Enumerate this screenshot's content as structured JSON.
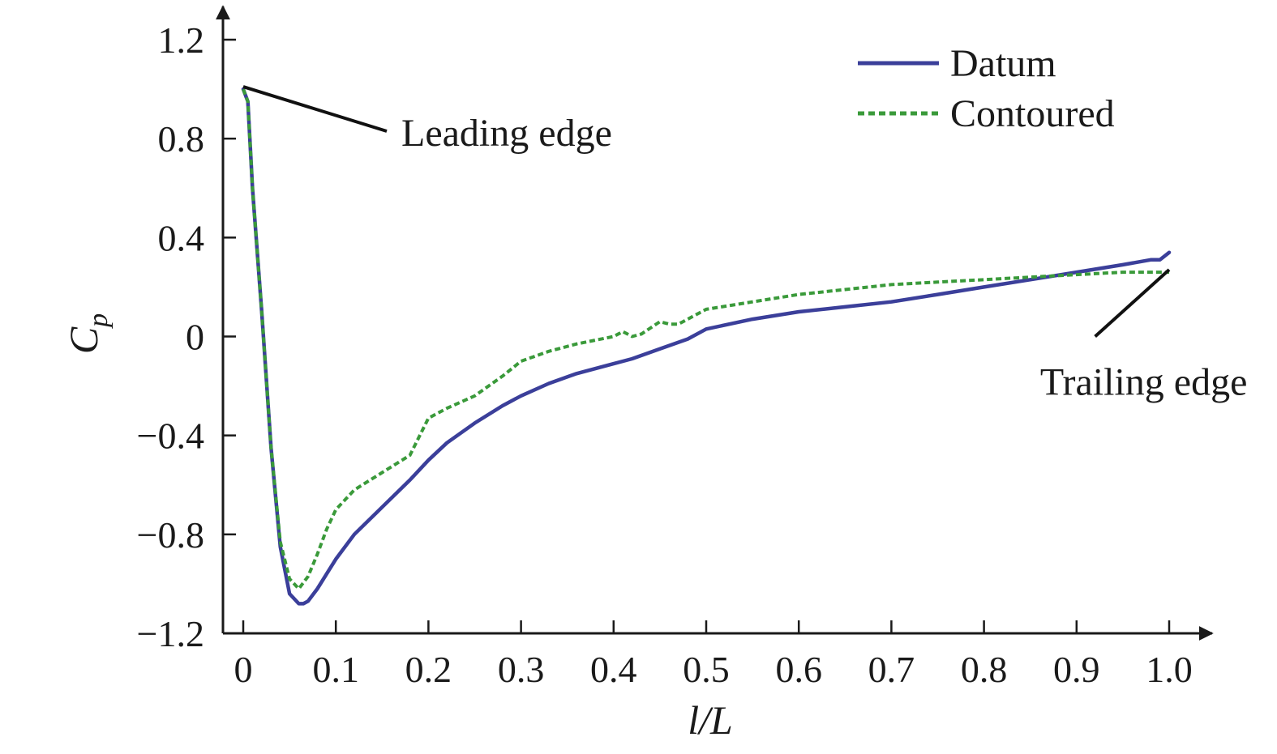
{
  "chart_data": {
    "type": "line",
    "xlabel": "l/L",
    "ylabel": "C",
    "ylabel_sub": "p",
    "xlim": [
      0,
      1.0
    ],
    "ylim": [
      -1.2,
      1.2
    ],
    "xticks": [
      "0",
      "0.1",
      "0.2",
      "0.3",
      "0.4",
      "0.5",
      "0.6",
      "0.7",
      "0.8",
      "0.9",
      "1.0"
    ],
    "yticks": [
      "1.2",
      "0.8",
      "0.4",
      "0",
      "−0.4",
      "−0.8",
      "−1.2"
    ],
    "xtick_values": [
      0,
      0.1,
      0.2,
      0.3,
      0.4,
      0.5,
      0.6,
      0.7,
      0.8,
      0.9,
      1.0
    ],
    "ytick_values": [
      1.2,
      0.8,
      0.4,
      0,
      -0.4,
      -0.8,
      -1.2
    ],
    "grid": false,
    "legend_position": "top-right",
    "series": [
      {
        "name": "Datum",
        "color": "#3b3f9a",
        "style": "solid",
        "x": [
          0,
          0.005,
          0.01,
          0.02,
          0.03,
          0.04,
          0.05,
          0.06,
          0.065,
          0.07,
          0.08,
          0.09,
          0.1,
          0.12,
          0.15,
          0.18,
          0.2,
          0.22,
          0.25,
          0.28,
          0.3,
          0.33,
          0.36,
          0.4,
          0.42,
          0.45,
          0.48,
          0.5,
          0.55,
          0.6,
          0.65,
          0.7,
          0.75,
          0.8,
          0.85,
          0.9,
          0.95,
          0.98,
          0.99,
          1.0
        ],
        "y": [
          1.0,
          0.95,
          0.6,
          0.1,
          -0.45,
          -0.85,
          -1.04,
          -1.08,
          -1.08,
          -1.07,
          -1.02,
          -0.96,
          -0.9,
          -0.8,
          -0.69,
          -0.58,
          -0.5,
          -0.43,
          -0.35,
          -0.28,
          -0.24,
          -0.19,
          -0.15,
          -0.11,
          -0.09,
          -0.05,
          -0.01,
          0.03,
          0.07,
          0.1,
          0.12,
          0.14,
          0.17,
          0.2,
          0.23,
          0.26,
          0.29,
          0.31,
          0.31,
          0.34
        ]
      },
      {
        "name": "Contoured",
        "color": "#3a9a3a",
        "style": "dotted",
        "x": [
          0,
          0.005,
          0.01,
          0.02,
          0.03,
          0.04,
          0.05,
          0.06,
          0.07,
          0.08,
          0.09,
          0.1,
          0.12,
          0.15,
          0.18,
          0.2,
          0.22,
          0.25,
          0.28,
          0.3,
          0.33,
          0.36,
          0.4,
          0.41,
          0.42,
          0.43,
          0.45,
          0.46,
          0.47,
          0.5,
          0.55,
          0.6,
          0.65,
          0.7,
          0.75,
          0.8,
          0.85,
          0.9,
          0.95,
          1.0
        ],
        "y": [
          1.0,
          0.95,
          0.6,
          0.1,
          -0.45,
          -0.83,
          -0.98,
          -1.02,
          -0.97,
          -0.88,
          -0.78,
          -0.7,
          -0.62,
          -0.55,
          -0.48,
          -0.33,
          -0.29,
          -0.24,
          -0.16,
          -0.1,
          -0.06,
          -0.03,
          0.0,
          0.02,
          0.0,
          0.01,
          0.06,
          0.05,
          0.05,
          0.11,
          0.14,
          0.17,
          0.19,
          0.21,
          0.22,
          0.23,
          0.24,
          0.25,
          0.26,
          0.26
        ]
      }
    ],
    "annotations": [
      {
        "text": "Leading edge",
        "at": [
          0.0,
          1.01
        ],
        "label_at": [
          0.155,
          0.83
        ]
      },
      {
        "text": "Trailing edge",
        "at": [
          1.0,
          0.27
        ],
        "label_at": [
          0.92,
          0.0
        ]
      }
    ]
  }
}
